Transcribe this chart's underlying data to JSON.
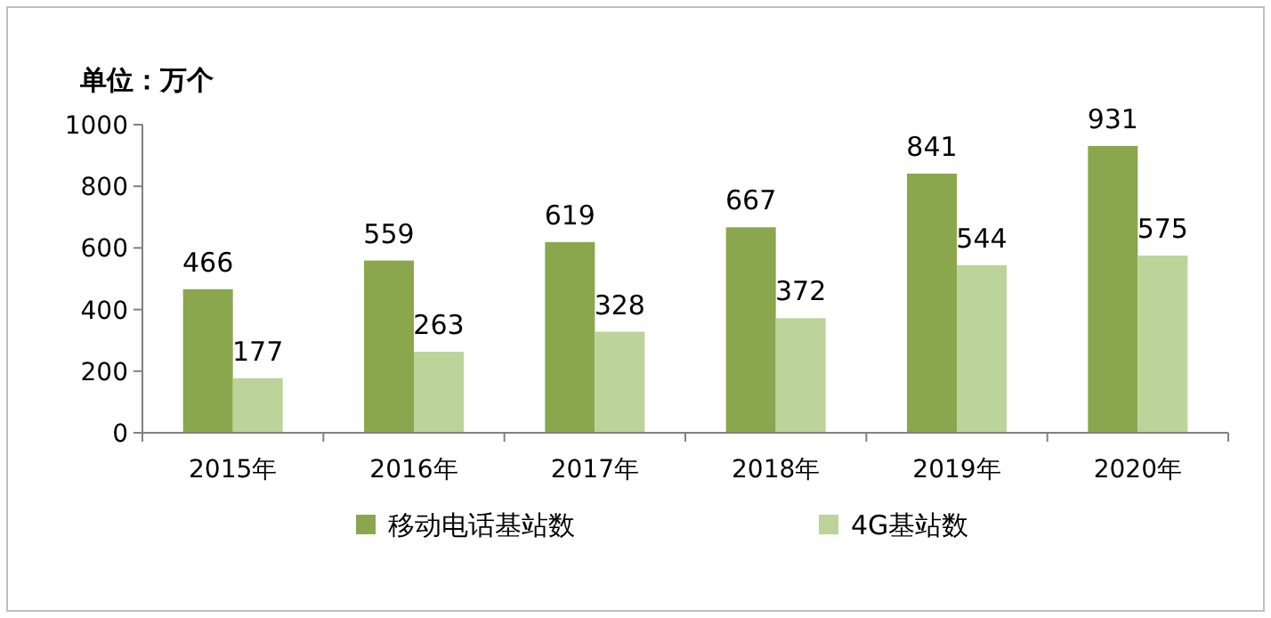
{
  "chart_data": {
    "type": "bar",
    "ylabel": "单位：万个",
    "categories": [
      "2015年",
      "2016年",
      "2017年",
      "2018年",
      "2019年",
      "2020年"
    ],
    "series": [
      {
        "name": "移动电话基站数",
        "color": "#8ba74e",
        "values": [
          466,
          559,
          619,
          667,
          841,
          931
        ]
      },
      {
        "name": "4G基站数",
        "color": "#bcd39a",
        "values": [
          177,
          263,
          328,
          372,
          544,
          575
        ]
      }
    ],
    "ylim": [
      0,
      1000
    ],
    "yticks": [
      0,
      200,
      400,
      600,
      800,
      1000
    ],
    "data_labels": true,
    "legend": "bottom",
    "grid": false
  }
}
